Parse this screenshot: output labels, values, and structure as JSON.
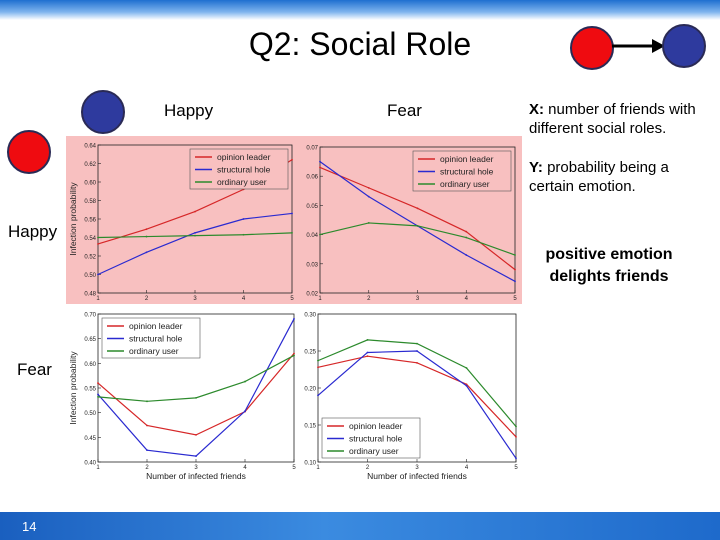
{
  "slide": {
    "title": "Q2: Social Role",
    "page_number": "14",
    "col_labels": [
      "Happy",
      "Fear"
    ],
    "row_labels": [
      "Happy",
      "Fear"
    ],
    "notes": {
      "x_key": "X:",
      "x_text": "number of friends with different social roles.",
      "y_key": "Y:",
      "y_text": "probability being a certain emotion.",
      "conclusion": "positive emotion delights friends"
    },
    "colors": {
      "red_node": "#ef0b10",
      "blue_node": "#2e3a9e",
      "highlight": "#f8c0c0",
      "opinion_leader": "#d62728",
      "structural_hole": "#2a2ad0",
      "ordinary_user": "#2c8a2c"
    }
  },
  "chart_data": [
    {
      "type": "line",
      "panel": "happy-happy",
      "x": [
        1,
        2,
        3,
        4,
        5
      ],
      "xlim": [
        1,
        5
      ],
      "ylim": [
        0.48,
        0.64
      ],
      "yticks": [
        "0.48",
        "0.50",
        "0.52",
        "0.54",
        "0.56",
        "0.58",
        "0.60",
        "0.62",
        "0.64"
      ],
      "xticks": [
        "1",
        "2",
        "3",
        "4",
        "5"
      ],
      "ylabel": "Infection probability",
      "xlabel": "",
      "legend": "top-right",
      "series": [
        {
          "name": "opinion leader",
          "color": "#d62728",
          "values": [
            0.533,
            0.549,
            0.568,
            0.592,
            0.624
          ]
        },
        {
          "name": "structural hole",
          "color": "#2a2ad0",
          "values": [
            0.5,
            0.524,
            0.545,
            0.56,
            0.566
          ]
        },
        {
          "name": "ordinary user",
          "color": "#2c8a2c",
          "values": [
            0.54,
            0.541,
            0.542,
            0.543,
            0.545
          ]
        }
      ]
    },
    {
      "type": "line",
      "panel": "happy-fear",
      "x": [
        1,
        2,
        3,
        4,
        5
      ],
      "xlim": [
        1,
        5
      ],
      "ylim": [
        0.02,
        0.07
      ],
      "yticks": [
        "0.02",
        "0.03",
        "0.04",
        "0.05",
        "0.06",
        "0.07"
      ],
      "xticks": [
        "1",
        "2",
        "3",
        "4",
        "5"
      ],
      "ylabel": "",
      "xlabel": "",
      "legend": "top-right",
      "series": [
        {
          "name": "opinion leader",
          "color": "#d62728",
          "values": [
            0.063,
            0.056,
            0.049,
            0.041,
            0.028
          ]
        },
        {
          "name": "structural hole",
          "color": "#2a2ad0",
          "values": [
            0.065,
            0.053,
            0.043,
            0.033,
            0.024
          ]
        },
        {
          "name": "ordinary user",
          "color": "#2c8a2c",
          "values": [
            0.04,
            0.044,
            0.043,
            0.039,
            0.033
          ]
        }
      ]
    },
    {
      "type": "line",
      "panel": "fear-happy",
      "x": [
        1,
        2,
        3,
        4,
        5
      ],
      "xlim": [
        1,
        5
      ],
      "ylim": [
        0.4,
        0.7
      ],
      "yticks": [
        "0.40",
        "0.45",
        "0.50",
        "0.55",
        "0.60",
        "0.65",
        "0.70"
      ],
      "xticks": [
        "1",
        "2",
        "3",
        "4",
        "5"
      ],
      "ylabel": "Infection probability",
      "xlabel": "Number of infected friends",
      "legend": "top-left",
      "series": [
        {
          "name": "opinion leader",
          "color": "#d62728",
          "values": [
            0.56,
            0.474,
            0.455,
            0.502,
            0.62
          ]
        },
        {
          "name": "structural hole",
          "color": "#2a2ad0",
          "values": [
            0.537,
            0.424,
            0.412,
            0.503,
            0.69
          ]
        },
        {
          "name": "ordinary user",
          "color": "#2c8a2c",
          "values": [
            0.532,
            0.523,
            0.53,
            0.563,
            0.616
          ]
        }
      ]
    },
    {
      "type": "line",
      "panel": "fear-fear",
      "x": [
        1,
        2,
        3,
        4,
        5
      ],
      "xlim": [
        1,
        5
      ],
      "ylim": [
        0.1,
        0.3
      ],
      "yticks": [
        "0.10",
        "0.15",
        "0.20",
        "0.25",
        "0.30"
      ],
      "xticks": [
        "1",
        "2",
        "3",
        "4",
        "5"
      ],
      "ylabel": "",
      "xlabel": "Number of infected friends",
      "legend": "bottom-left",
      "series": [
        {
          "name": "opinion leader",
          "color": "#d62728",
          "values": [
            0.228,
            0.243,
            0.234,
            0.205,
            0.134
          ]
        },
        {
          "name": "structural hole",
          "color": "#2a2ad0",
          "values": [
            0.19,
            0.248,
            0.25,
            0.203,
            0.105
          ]
        },
        {
          "name": "ordinary user",
          "color": "#2c8a2c",
          "values": [
            0.237,
            0.265,
            0.26,
            0.227,
            0.148
          ]
        }
      ]
    }
  ]
}
